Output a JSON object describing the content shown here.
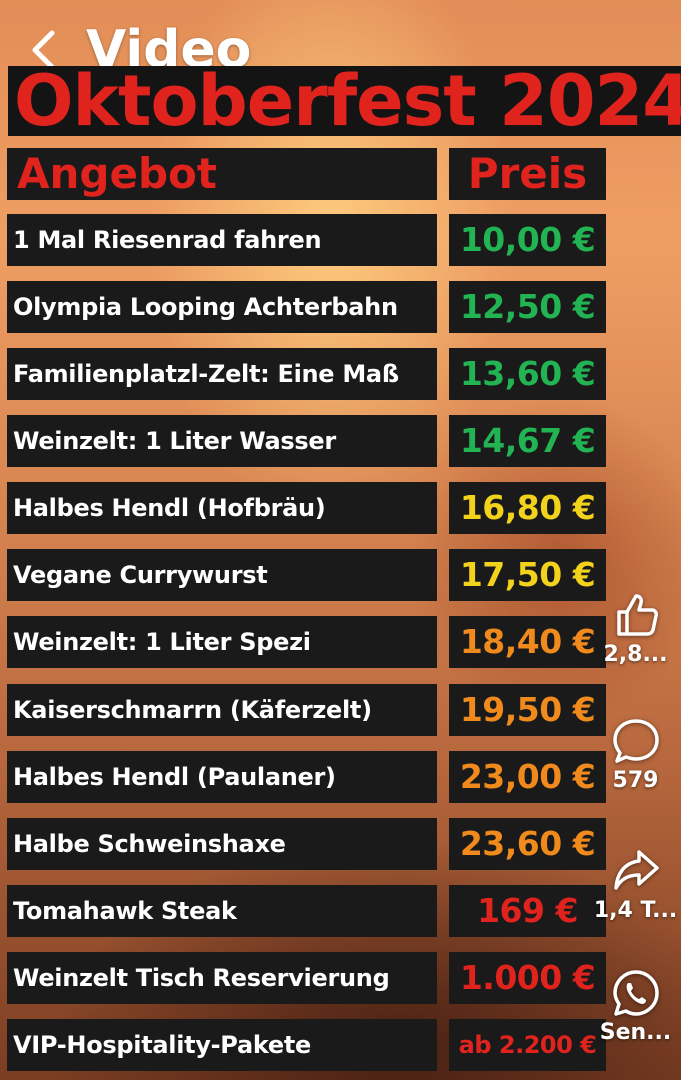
{
  "topbar": {
    "back_icon": "chevron-left-icon",
    "title": "Video"
  },
  "banner": {
    "title": "Oktoberfest 2024"
  },
  "table": {
    "header_item": "Angebot",
    "header_price": "Preis",
    "rows": [
      {
        "item": "1 Mal Riesenrad fahren",
        "price": "10,00 €",
        "color": "#22b452"
      },
      {
        "item": "Olympia Looping Achterbahn",
        "price": "12,50 €",
        "color": "#22b452"
      },
      {
        "item": "Familienplatzl-Zelt: Eine Maß",
        "price": "13,60 €",
        "color": "#22b452"
      },
      {
        "item": "Weinzelt: 1 Liter Wasser",
        "price": "14,67 €",
        "color": "#22b452"
      },
      {
        "item": "Halbes Hendl (Hofbräu)",
        "price": "16,80 €",
        "color": "#f3d21c"
      },
      {
        "item": "Vegane Currywurst",
        "price": "17,50 €",
        "color": "#f3d21c"
      },
      {
        "item": "Weinzelt: 1 Liter Spezi",
        "price": "18,40 €",
        "color": "#f08a1c"
      },
      {
        "item": "Kaiserschmarrn (Käferzelt)",
        "price": "19,50 €",
        "color": "#f08a1c"
      },
      {
        "item": "Halbes Hendl (Paulaner)",
        "price": "23,00 €",
        "color": "#f08a1c"
      },
      {
        "item": "Halbe Schweinshaxe",
        "price": "23,60 €",
        "color": "#f08a1c"
      },
      {
        "item": "Tomahawk Steak",
        "price": "169 €",
        "color": "#e1231e"
      },
      {
        "item": "Weinzelt Tisch Reservierung",
        "price": "1.000 €",
        "color": "#e1231e"
      },
      {
        "item": "VIP-Hospitality-Pakete",
        "price": "ab 2.200 €",
        "color": "#e1231e"
      }
    ]
  },
  "actions": {
    "like": {
      "icon": "thumbs-up-icon",
      "count": "2,8..."
    },
    "comment": {
      "icon": "comment-bubble-icon",
      "count": "579"
    },
    "share": {
      "icon": "share-arrow-icon",
      "count": "1,4 T..."
    },
    "send": {
      "icon": "whatsapp-icon",
      "label": "Sen..."
    }
  },
  "colors": {
    "banner_red": "#e1231e",
    "cell_bg": "#1a1a1a"
  }
}
